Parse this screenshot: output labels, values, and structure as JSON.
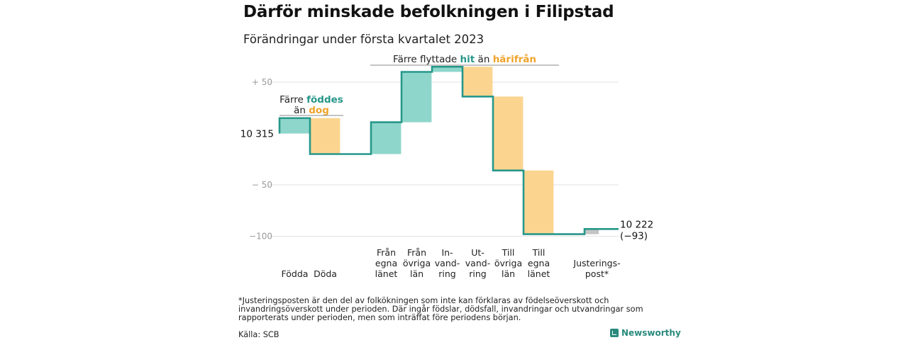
{
  "title": "Därför minskade befolkningen i Filipstad",
  "subtitle": "Förändringar under första kvartalet 2023",
  "footnote": "*Justeringsposten är den del av folkökningen som inte kan förklaras av födelseöverskott och invandringsöverskott under perioden. Där ingår födslar, dödsfall, invandringar och utvandringar som rapporterats under perioden, men som inträffat före periodens början.",
  "source": "Källa: SCB",
  "brand": "Newsworthy",
  "colors": {
    "increase": "#8ed6cb",
    "decrease": "#fbd590",
    "adjustment": "#c4c4c4",
    "line": "#27978a",
    "hit": "#27978a",
    "harifran": "#f0a32a"
  },
  "annotations": {
    "births_deaths": {
      "line1": "Färre",
      "line1_hl": "föddes",
      "line2": "än",
      "line2_hl": "dog"
    },
    "migration": {
      "prefix": "Färre flyttade",
      "hl1": "hit",
      "mid": "än",
      "hl2": "härifrån"
    }
  },
  "chart_data": {
    "type": "waterfall",
    "title": "Därför minskade befolkningen i Filipstad",
    "subtitle": "Förändringar under första kvartalet 2023",
    "start_value": 10315,
    "start_label": "10 315",
    "end_value": 10222,
    "end_label": "10 222",
    "end_change_label": "(−93)",
    "y_axis": {
      "unit": "change relative to start",
      "ylim": [
        -105,
        67
      ],
      "ticks": [
        50,
        -50,
        -100
      ],
      "tick_labels": [
        "+ 50",
        "− 50",
        "−100"
      ],
      "grid": true
    },
    "steps": [
      {
        "label": "Födda",
        "lines": [
          "Födda"
        ],
        "change": 15,
        "kind": "increase"
      },
      {
        "label": "Döda",
        "lines": [
          "Döda"
        ],
        "change": -35,
        "kind": "decrease"
      },
      {
        "label": "Från egna länet",
        "lines": [
          "Från",
          "egna",
          "länet"
        ],
        "change": 31,
        "kind": "increase"
      },
      {
        "label": "Från övriga län",
        "lines": [
          "Från",
          "övriga",
          "län"
        ],
        "change": 49,
        "kind": "increase"
      },
      {
        "label": "Invandring",
        "lines": [
          "In-",
          "vand-",
          "ring"
        ],
        "change": 5,
        "kind": "increase"
      },
      {
        "label": "Utvandring",
        "lines": [
          "Ut-",
          "vand-",
          "ring"
        ],
        "change": -29,
        "kind": "decrease"
      },
      {
        "label": "Till övriga län",
        "lines": [
          "Till",
          "övriga",
          "län"
        ],
        "change": -72,
        "kind": "decrease"
      },
      {
        "label": "Till egna länet",
        "lines": [
          "Till",
          "egna",
          "länet"
        ],
        "change": -62,
        "kind": "decrease"
      },
      {
        "label": "Justeringspost*",
        "lines": [
          "Justerings-",
          "post*"
        ],
        "change": 5,
        "kind": "adjustment"
      }
    ]
  }
}
